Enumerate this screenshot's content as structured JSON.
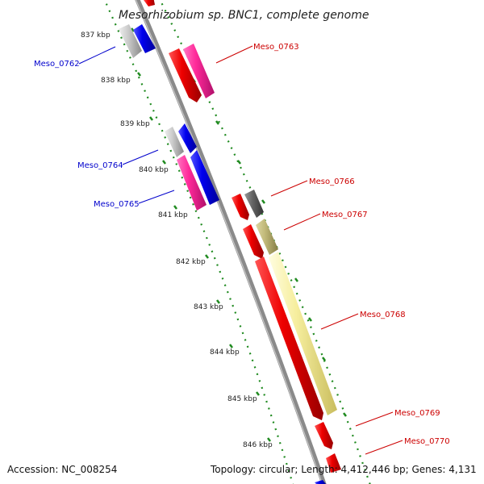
{
  "title": "Mesorhizobium sp. BNC1, complete genome",
  "accession": "Accession: NC_008254",
  "summary": "Topology: circular; Length: 4,412,446 bp; Genes: 4,131",
  "colors": {
    "backbone": "#8a8a8a",
    "tick_dots": "#1f8a1f",
    "forward_label": "#cc0000",
    "reverse_label": "#0000cc"
  },
  "ticks": [
    {
      "label": "837 kbp"
    },
    {
      "label": "838 kbp"
    },
    {
      "label": "839 kbp"
    },
    {
      "label": "840 kbp"
    },
    {
      "label": "841 kbp"
    },
    {
      "label": "842 kbp"
    },
    {
      "label": "843 kbp"
    },
    {
      "label": "844 kbp"
    },
    {
      "label": "845 kbp"
    },
    {
      "label": "846 kbp"
    }
  ],
  "gene_labels": [
    {
      "label": "Meso_0762",
      "strand": "reverse"
    },
    {
      "label": "Meso_0763",
      "strand": "forward"
    },
    {
      "label": "Meso_0764",
      "strand": "reverse"
    },
    {
      "label": "Meso_0765",
      "strand": "reverse"
    },
    {
      "label": "Meso_0766",
      "strand": "forward"
    },
    {
      "label": "Meso_0767",
      "strand": "forward"
    },
    {
      "label": "Meso_0768",
      "strand": "forward"
    },
    {
      "label": "Meso_0769",
      "strand": "forward"
    },
    {
      "label": "Meso_0770",
      "strand": "forward"
    }
  ]
}
